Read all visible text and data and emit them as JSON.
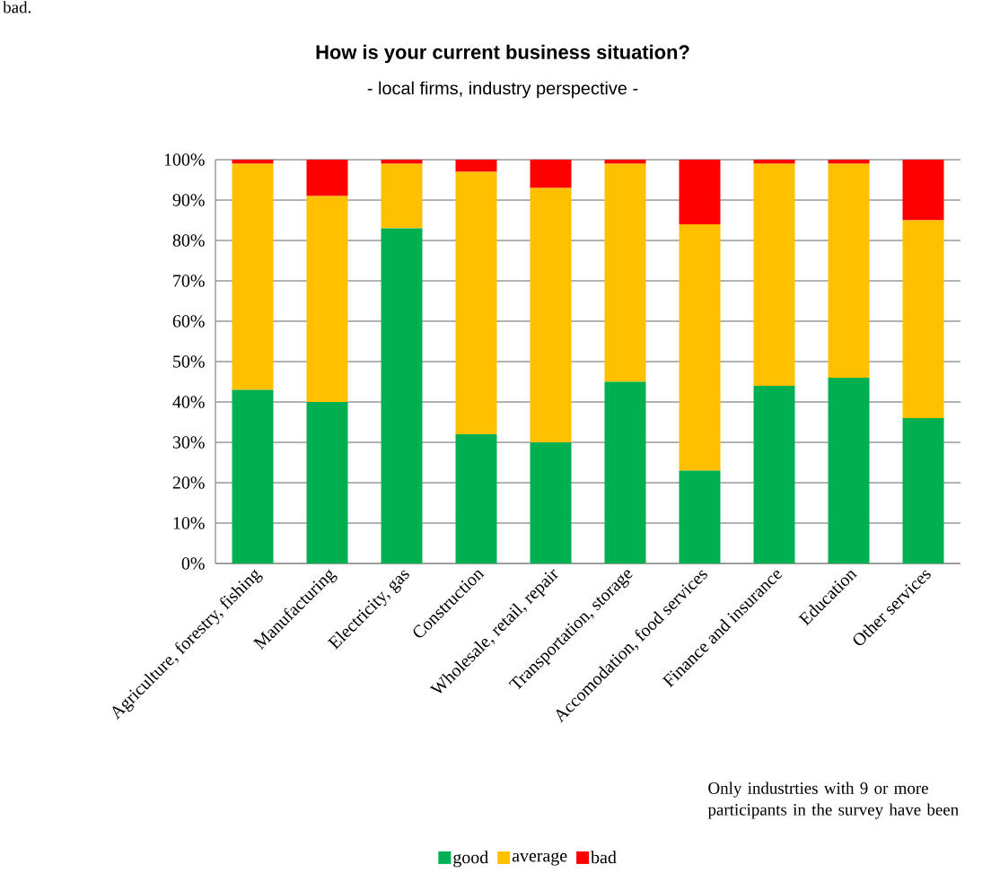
{
  "chart_data": {
    "type": "bar",
    "stacked": true,
    "title": "How is your current business situation?",
    "subtitle": "- local firms, industry perspective -",
    "categories": [
      "Agriculture, forestry, fishing",
      "Manufacturing",
      "Electricity, gas",
      "Construction",
      "Wholesale, retail, repair",
      "Transportation, storage",
      "Accomodation, food services",
      "Finance and insurance",
      "Education",
      "Other services"
    ],
    "series": [
      {
        "name": "good",
        "color": "#00b050",
        "values": [
          43,
          40,
          83,
          32,
          30,
          45,
          23,
          44,
          46,
          36
        ]
      },
      {
        "name": "average",
        "color": "#ffc000",
        "values": [
          56,
          51,
          16,
          65,
          63,
          54,
          61,
          55,
          53,
          49
        ]
      },
      {
        "name": "bad",
        "color": "#ff0000",
        "values": [
          1,
          9,
          1,
          3,
          7,
          1,
          16,
          1,
          1,
          15
        ]
      }
    ],
    "ylim": [
      0,
      100
    ],
    "yticks": [
      {
        "value": 0,
        "label": "0%"
      },
      {
        "value": 10,
        "label": "10%"
      },
      {
        "value": 20,
        "label": "20%"
      },
      {
        "value": 30,
        "label": "30%"
      },
      {
        "value": 40,
        "label": "40%"
      },
      {
        "value": 50,
        "label": "50%"
      },
      {
        "value": 60,
        "label": "60%"
      },
      {
        "value": 70,
        "label": "70%"
      },
      {
        "value": 80,
        "label": "80%"
      },
      {
        "value": 90,
        "label": "90%"
      },
      {
        "value": 100,
        "label": "100%"
      }
    ],
    "grid": "y",
    "legend": "bottom",
    "annotations": [
      "Only industrties with 9 or more participants in the survey have been",
      "bad."
    ]
  }
}
